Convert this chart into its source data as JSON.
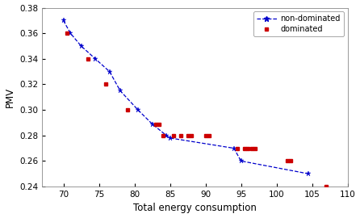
{
  "non_dominated_x": [
    70.0,
    71.0,
    72.5,
    74.5,
    76.5,
    78.0,
    80.5,
    82.5,
    84.5,
    85.0,
    94.0,
    95.0,
    104.5
  ],
  "non_dominated_y": [
    0.37,
    0.36,
    0.35,
    0.34,
    0.33,
    0.315,
    0.3,
    0.289,
    0.28,
    0.278,
    0.27,
    0.26,
    0.25
  ],
  "dominated_x": [
    70.5,
    73.5,
    76.0,
    79.0,
    83.0,
    83.5,
    84.0,
    85.5,
    86.5,
    87.5,
    88.0,
    90.0,
    90.5,
    94.5,
    95.5,
    96.0,
    96.5,
    97.0,
    101.5,
    102.0,
    107.0
  ],
  "dominated_y": [
    0.36,
    0.34,
    0.32,
    0.3,
    0.289,
    0.289,
    0.28,
    0.28,
    0.28,
    0.28,
    0.28,
    0.28,
    0.28,
    0.27,
    0.27,
    0.27,
    0.27,
    0.27,
    0.26,
    0.26,
    0.24
  ],
  "nd_color": "#0000cc",
  "d_color": "#cc0000",
  "xlabel": "Total energy consumption",
  "ylabel": "PMV",
  "xlim": [
    67,
    110
  ],
  "ylim": [
    0.24,
    0.38
  ],
  "xticks": [
    70,
    75,
    80,
    85,
    90,
    95,
    100,
    105,
    110
  ],
  "yticks": [
    0.24,
    0.26,
    0.28,
    0.3,
    0.32,
    0.34,
    0.36,
    0.38
  ],
  "legend_nd": "non-dominated",
  "legend_d": "dominated",
  "bg_color": "#ffffff"
}
